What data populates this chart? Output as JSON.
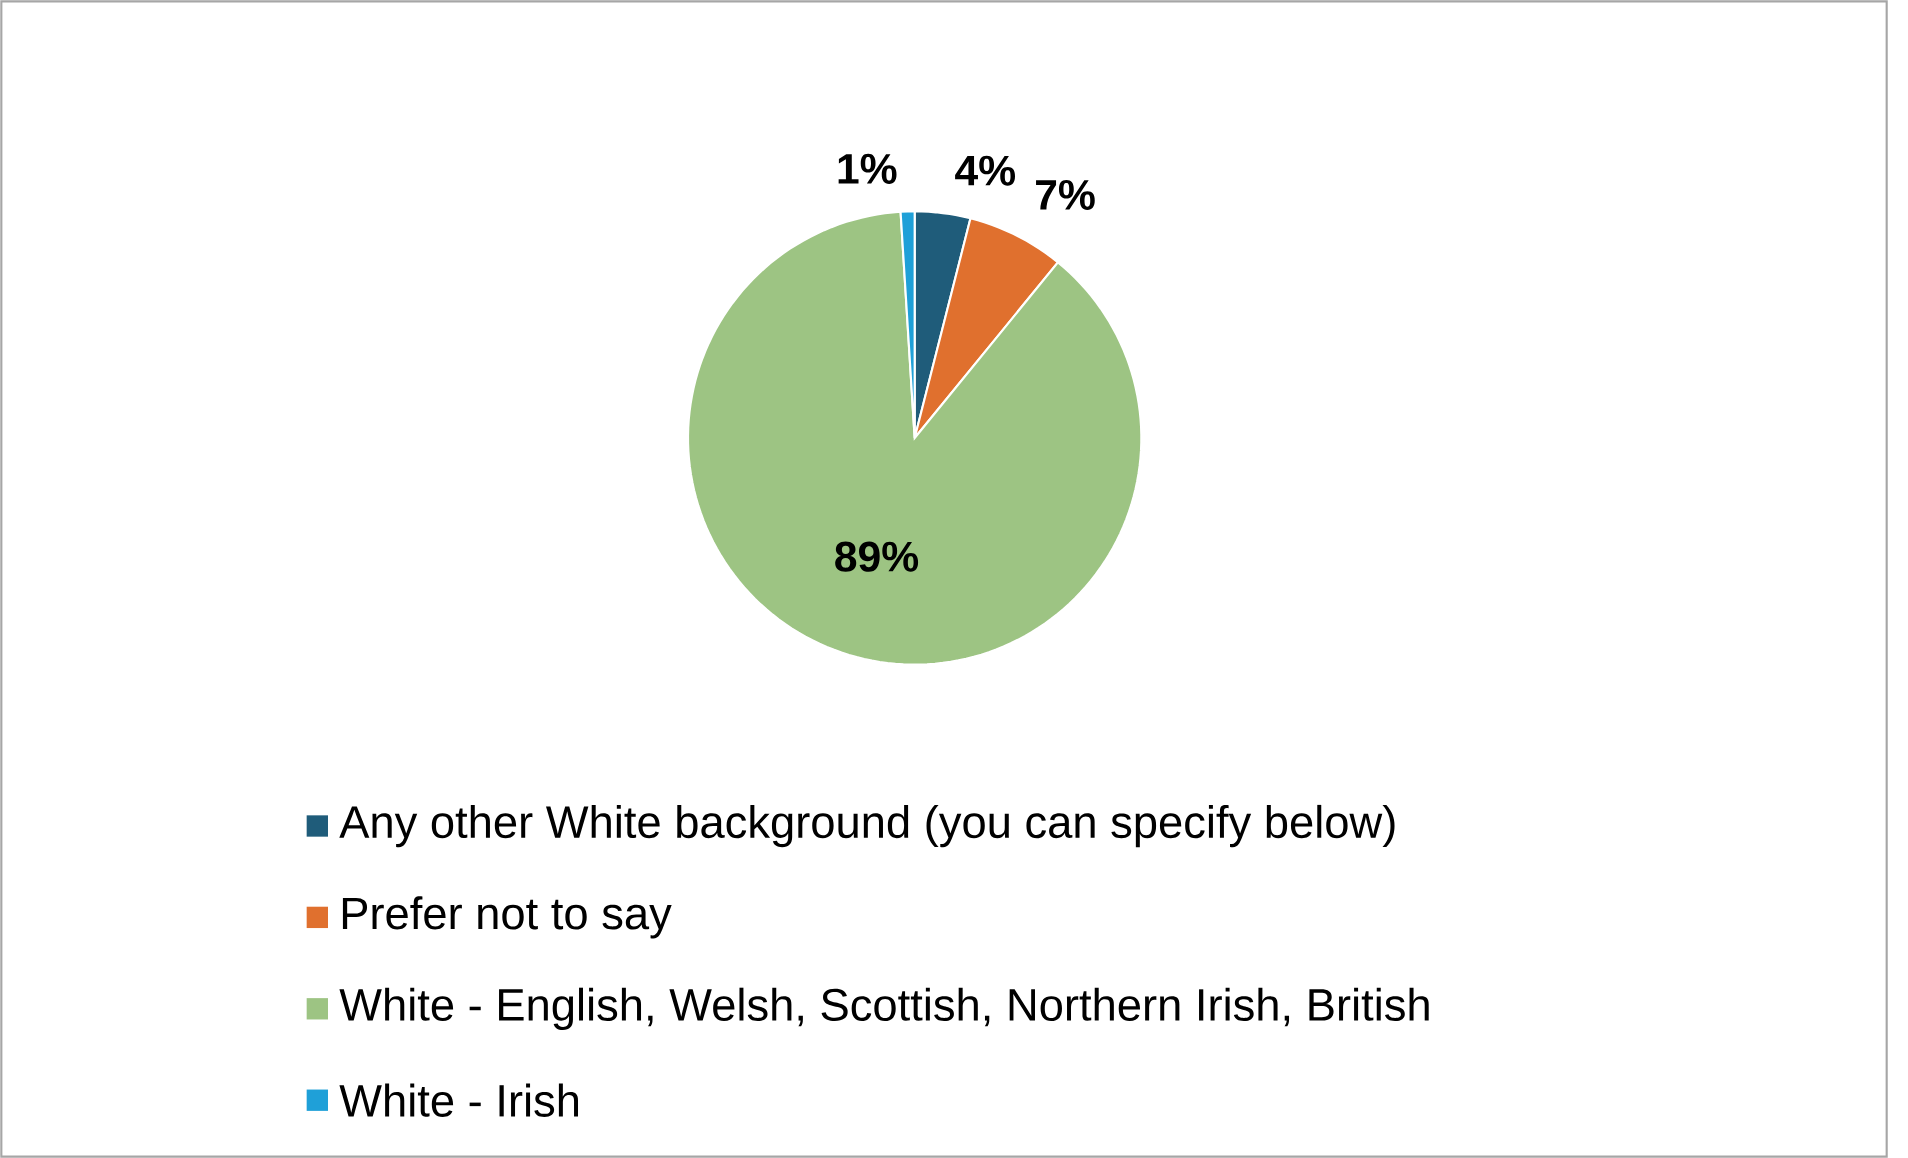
{
  "chart_data": {
    "type": "pie",
    "categories": [
      "Any other White background (you can specify below)",
      "Prefer not to say",
      "White - English, Welsh, Scottish, Northern Irish, British",
      "White - Irish"
    ],
    "values": [
      4,
      7,
      89,
      1
    ],
    "colors": [
      "#1f5c7a",
      "#e0702e",
      "#9dc483",
      "#1fa0d8"
    ],
    "value_labels": [
      "4%",
      "7%",
      "89%",
      "1%"
    ],
    "legend": "bottom"
  }
}
